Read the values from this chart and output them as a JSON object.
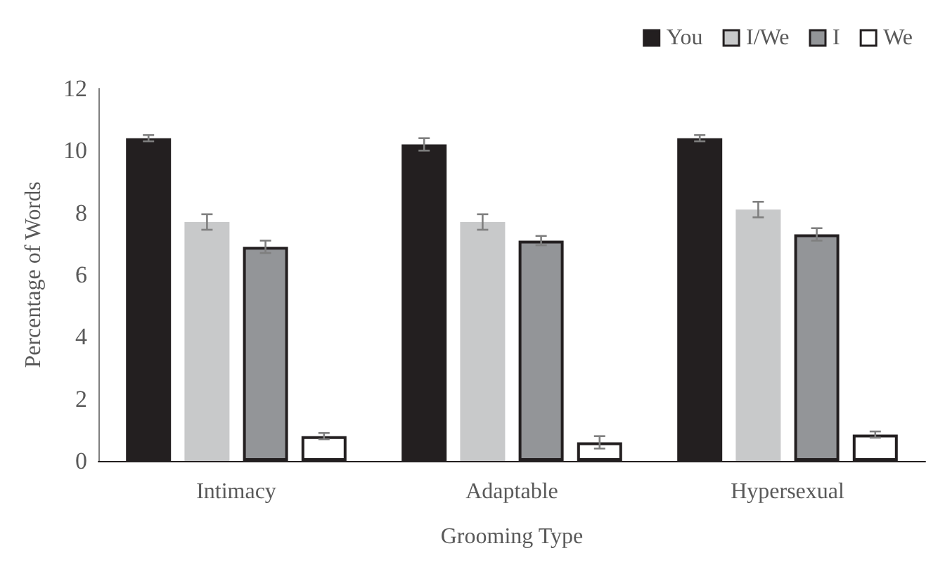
{
  "chart_data": {
    "type": "bar",
    "xlabel": "Grooming Type",
    "ylabel": "Percentage of Words",
    "categories": [
      "Intimacy",
      "Adaptable",
      "Hypersexual"
    ],
    "series": [
      {
        "name": "You",
        "color": "#231f20",
        "values": [
          10.4,
          10.2,
          10.4
        ],
        "errors": [
          0.1,
          0.2,
          0.1
        ]
      },
      {
        "name": "I/We",
        "color": "#c8c9ca",
        "values": [
          7.7,
          7.7,
          8.1
        ],
        "errors": [
          0.25,
          0.25,
          0.25
        ]
      },
      {
        "name": "I",
        "color": "#939598",
        "values": [
          6.9,
          7.1,
          7.3
        ],
        "errors": [
          0.2,
          0.15,
          0.2
        ]
      },
      {
        "name": "We",
        "color": "#ffffff",
        "values": [
          0.8,
          0.6,
          0.85
        ],
        "errors": [
          0.1,
          0.2,
          0.1
        ]
      }
    ],
    "ylim": [
      0,
      12
    ],
    "yticks": [
      0,
      2,
      4,
      6,
      8,
      10,
      12
    ],
    "grid": false,
    "legend": "top right"
  }
}
